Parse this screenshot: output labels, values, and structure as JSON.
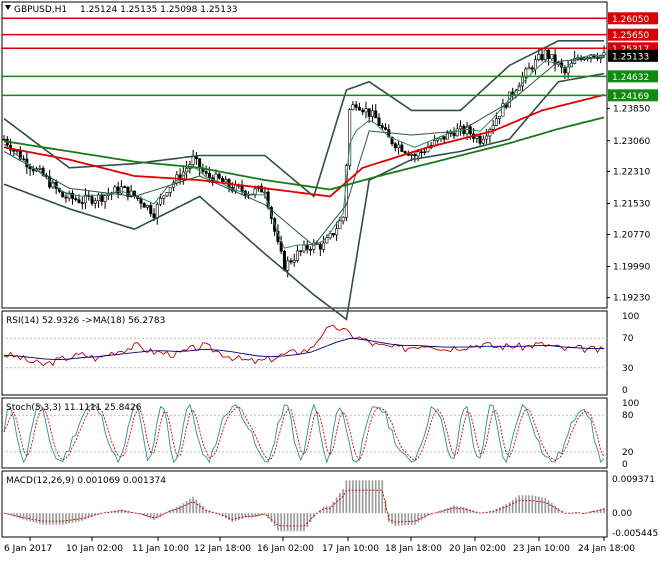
{
  "header": {
    "symbol_label": "GBPUSD,H1",
    "ohlc_label": "1.25124 1.25135 1.25098 1.25133"
  },
  "colors": {
    "background": "#ffffff",
    "candle": "#000000",
    "bollinger": "#2f4f4f",
    "ma_fast": "#2e8b57",
    "ma_mid_red": "#e00000",
    "ma_slow_green": "#1a7a1a",
    "resistance": "#d80000",
    "support": "#108a10",
    "rsi_line": "#c00000",
    "rsi_ma": "#00007f",
    "stoch_main": "#2f8f8f",
    "stoch_signal": "#d00000",
    "macd_hist": "#999999",
    "macd_signal": "#d00000"
  },
  "chart_data": [
    {
      "type": "line",
      "panel": "price",
      "series_note": "candlestick price with Bollinger bands and moving averages",
      "y_axis_ticks": [
        "1.23850",
        "1.23060",
        "1.22310",
        "1.21530",
        "1.20770",
        "1.19990",
        "1.19230"
      ],
      "ylim": [
        1.1905,
        1.2635
      ],
      "x_tick_labels": [
        "6 Jan 2017",
        "10 Jan 02:00",
        "11 Jan 10:00",
        "12 Jan 18:00",
        "16 Jan 02:00",
        "17 Jan 10:00",
        "18 Jan 18:00",
        "20 Jan 02:00",
        "23 Jan 10:00",
        "24 Jan 18:00"
      ],
      "levels": [
        {
          "label": "1.26050",
          "value": 1.2605,
          "kind": "resistance"
        },
        {
          "label": "1.25650",
          "value": 1.2565,
          "kind": "resistance"
        },
        {
          "label": "1.25317",
          "value": 1.25317,
          "kind": "resistance"
        },
        {
          "label": "1.24632",
          "value": 1.24632,
          "kind": "support"
        },
        {
          "label": "1.24169",
          "value": 1.24169,
          "kind": "support"
        }
      ],
      "current_price_label": "1.25133",
      "current_price": 1.25133,
      "price_path": [
        [
          0,
          1.231
        ],
        [
          6,
          1.226
        ],
        [
          12,
          1.222
        ],
        [
          18,
          1.217
        ],
        [
          24,
          1.216
        ],
        [
          30,
          1.217
        ],
        [
          36,
          1.219
        ],
        [
          42,
          1.216
        ],
        [
          46,
          1.213
        ],
        [
          50,
          1.219
        ],
        [
          54,
          1.222
        ],
        [
          58,
          1.226
        ],
        [
          62,
          1.222
        ],
        [
          66,
          1.221
        ],
        [
          70,
          1.219
        ],
        [
          76,
          1.218
        ],
        [
          80,
          1.219
        ],
        [
          84,
          1.205
        ],
        [
          86,
          1.2
        ],
        [
          90,
          1.203
        ],
        [
          94,
          1.205
        ],
        [
          98,
          1.205
        ],
        [
          100,
          1.207
        ],
        [
          104,
          1.212
        ],
        [
          106,
          1.238
        ],
        [
          108,
          1.24
        ],
        [
          111,
          1.238
        ],
        [
          114,
          1.236
        ],
        [
          118,
          1.231
        ],
        [
          122,
          1.229
        ],
        [
          126,
          1.227
        ],
        [
          130,
          1.229
        ],
        [
          134,
          1.231
        ],
        [
          138,
          1.233
        ],
        [
          142,
          1.233
        ],
        [
          146,
          1.231
        ],
        [
          150,
          1.235
        ],
        [
          154,
          1.24
        ],
        [
          158,
          1.245
        ],
        [
          162,
          1.249
        ],
        [
          166,
          1.252
        ],
        [
          170,
          1.249
        ],
        [
          172,
          1.247
        ],
        [
          176,
          1.251
        ],
        [
          180,
          1.252
        ],
        [
          184,
          1.2513
        ]
      ],
      "bb_mid": [
        [
          0,
          1.228
        ],
        [
          20,
          1.219
        ],
        [
          40,
          1.217
        ],
        [
          60,
          1.222
        ],
        [
          80,
          1.215
        ],
        [
          95,
          1.205
        ],
        [
          105,
          1.215
        ],
        [
          112,
          1.233
        ],
        [
          125,
          1.232
        ],
        [
          140,
          1.233
        ],
        [
          155,
          1.24
        ],
        [
          170,
          1.25
        ],
        [
          184,
          1.251
        ]
      ],
      "bb_width": [
        [
          0,
          0.008
        ],
        [
          20,
          0.005
        ],
        [
          40,
          0.008
        ],
        [
          60,
          0.005
        ],
        [
          80,
          0.012
        ],
        [
          95,
          0.012
        ],
        [
          105,
          0.028
        ],
        [
          112,
          0.012
        ],
        [
          125,
          0.006
        ],
        [
          140,
          0.005
        ],
        [
          155,
          0.009
        ],
        [
          170,
          0.005
        ],
        [
          184,
          0.004
        ]
      ],
      "ma_red": [
        [
          0,
          1.229
        ],
        [
          20,
          1.226
        ],
        [
          40,
          1.222
        ],
        [
          60,
          1.221
        ],
        [
          80,
          1.219
        ],
        [
          100,
          1.217
        ],
        [
          110,
          1.224
        ],
        [
          130,
          1.229
        ],
        [
          150,
          1.233
        ],
        [
          165,
          1.238
        ],
        [
          184,
          1.2418
        ]
      ],
      "ma_green_slow": [
        [
          0,
          1.2305
        ],
        [
          20,
          1.228
        ],
        [
          40,
          1.2255
        ],
        [
          60,
          1.224
        ],
        [
          80,
          1.221
        ],
        [
          100,
          1.2187
        ],
        [
          115,
          1.222
        ],
        [
          135,
          1.226
        ],
        [
          155,
          1.23
        ],
        [
          170,
          1.2335
        ],
        [
          184,
          1.2363
        ]
      ]
    },
    {
      "type": "line",
      "panel": "rsi",
      "title": "RSI(14) 52.9326 ->MA(18) 56.2783",
      "ylim": [
        0,
        100
      ],
      "y_ticks": [
        "100",
        "70",
        "30",
        "0"
      ],
      "series": [
        {
          "name": "RSI(14)",
          "values": [
            48,
            45,
            38,
            34,
            40,
            45,
            48,
            42,
            50,
            55,
            60,
            52,
            50,
            48,
            55,
            60,
            52,
            45,
            40,
            38,
            42,
            48,
            52,
            55,
            80,
            85,
            75,
            68,
            60,
            58,
            56,
            60,
            62,
            55,
            58,
            60,
            62,
            58,
            60,
            58,
            62,
            60,
            55,
            56,
            55,
            53
          ]
        },
        {
          "name": "MA(18)",
          "values": [
            47,
            46,
            44,
            42,
            41,
            42,
            44,
            45,
            47,
            49,
            51,
            53,
            53,
            52,
            53,
            55,
            54,
            52,
            49,
            46,
            45,
            46,
            48,
            51,
            58,
            65,
            70,
            68,
            65,
            62,
            60,
            60,
            59,
            58,
            58,
            58,
            59,
            59,
            59,
            59,
            60,
            60,
            58,
            57,
            56,
            56
          ]
        }
      ]
    },
    {
      "type": "line",
      "panel": "stochastic",
      "title": "Stoch(5,3,3) 11.1111 25.8426",
      "ylim": [
        0,
        100
      ],
      "y_ticks": [
        "100",
        "80",
        "20",
        "0"
      ]
    },
    {
      "type": "bar",
      "panel": "macd",
      "title": "MACD(12,26,9) 0.001069 0.001374",
      "y_ticks": [
        "0.009371",
        "0.00",
        "-0.005445"
      ],
      "ylim": [
        -0.005445,
        0.009371
      ]
    }
  ]
}
